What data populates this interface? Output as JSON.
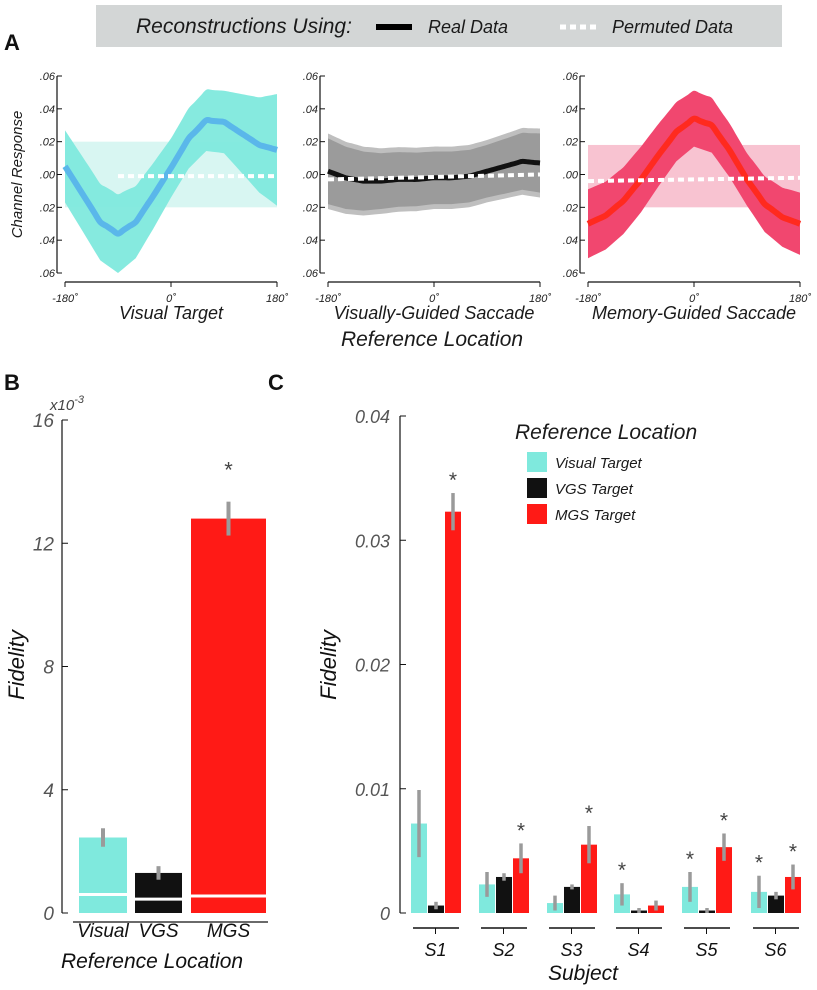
{
  "legend_banner": {
    "title": "Reconstructions Using:",
    "real_label": "Real Data",
    "permuted_label": "Permuted Data"
  },
  "panel_labels": {
    "a": "A",
    "b": "B",
    "c": "C"
  },
  "colors": {
    "visual": "#7fe9dd",
    "visual_line": "#5ab7ea",
    "visual_perm": "#d8f6f2",
    "vgs": "#9b9b9b",
    "vgs_outer": "#bfbfbf",
    "vgs_line": "#111111",
    "mgs": "#f1476f",
    "mgs_line": "#ff2a1f",
    "mgs_perm": "#f8c3d1",
    "bar_red": "#ff1a16",
    "bar_black": "#111111",
    "err": "#9a9a9a"
  },
  "chart_data": [
    {
      "id": "A1",
      "type": "line",
      "xlabel": "Visual Target",
      "ylabel": "Channel Response",
      "xlim": [
        -180,
        180
      ],
      "ylim": [
        -0.06,
        0.06
      ],
      "yticks": [
        ".06",
        ".04",
        ".02",
        ".00",
        ".02",
        ".04",
        ".06"
      ],
      "xticks": [
        "-180˚",
        "0˚",
        "180˚"
      ],
      "series": [
        {
          "name": "Real Data",
          "x": [
            -180,
            -150,
            -120,
            -90,
            -60,
            -30,
            0,
            30,
            60,
            90,
            120,
            150,
            180
          ],
          "y": [
            0.005,
            -0.012,
            -0.029,
            -0.036,
            -0.029,
            -0.013,
            0.004,
            0.022,
            0.033,
            0.032,
            0.025,
            0.018,
            0.015
          ]
        },
        {
          "name": "Permuted Data",
          "x": [
            -90,
            180
          ],
          "y": [
            -0.001,
            -0.001
          ]
        }
      ]
    },
    {
      "id": "A2",
      "type": "line",
      "xlabel": "Visually-Guided Saccade",
      "xlim": [
        -180,
        180
      ],
      "ylim": [
        -0.06,
        0.06
      ],
      "yticks": [
        ".06",
        ".04",
        ".02",
        ".00",
        ".02",
        ".04",
        ".06"
      ],
      "xticks": [
        "-180˚",
        "0˚",
        "180˚"
      ],
      "series": [
        {
          "name": "Real Data",
          "x": [
            -180,
            -150,
            -120,
            -90,
            -60,
            -30,
            0,
            30,
            60,
            90,
            120,
            150,
            180
          ],
          "y": [
            0.002,
            -0.002,
            -0.004,
            -0.004,
            -0.003,
            -0.003,
            -0.002,
            -0.002,
            -0.001,
            0.002,
            0.005,
            0.008,
            0.007
          ]
        },
        {
          "name": "Permuted Data",
          "x": [
            -180,
            180
          ],
          "y": [
            -0.003,
            0.0
          ]
        }
      ]
    },
    {
      "id": "A3",
      "type": "line",
      "xlabel": "Memory-Guided Saccade",
      "xlim": [
        -180,
        180
      ],
      "ylim": [
        -0.06,
        0.06
      ],
      "yticks": [
        ".06",
        ".04",
        ".02",
        ".00",
        ".02",
        ".04",
        ".06"
      ],
      "xticks": [
        "-180˚",
        "0˚",
        "180˚"
      ],
      "series": [
        {
          "name": "Real Data",
          "x": [
            -180,
            -150,
            -120,
            -90,
            -60,
            -30,
            0,
            30,
            60,
            90,
            120,
            150,
            180
          ],
          "y": [
            -0.03,
            -0.025,
            -0.016,
            -0.003,
            0.012,
            0.026,
            0.034,
            0.03,
            0.015,
            -0.003,
            -0.018,
            -0.026,
            -0.03
          ]
        },
        {
          "name": "Permuted Data",
          "x": [
            -180,
            180
          ],
          "y": [
            -0.004,
            -0.002
          ]
        }
      ]
    },
    {
      "id": "B",
      "type": "bar",
      "title": "",
      "ylabel": "Fidelity",
      "xlabel": "Reference Location",
      "scale_label": "x10",
      "scale_exponent": "-3",
      "ylim": [
        0,
        16
      ],
      "yticks": [
        "16",
        "12",
        "8",
        "4",
        "0"
      ],
      "categories": [
        "Visual",
        "VGS",
        "MGS"
      ],
      "values": [
        2.45,
        1.3,
        12.8
      ],
      "errors": [
        0.3,
        0.22,
        0.55
      ],
      "null_values": [
        0.6,
        0.45,
        0.55
      ],
      "annotations": [
        "",
        "",
        "*"
      ]
    },
    {
      "id": "C",
      "type": "bar",
      "ylabel": "Fidelity",
      "xlabel": "Subject",
      "legend_title": "Reference Location",
      "ylim": [
        0,
        0.04
      ],
      "yticks": [
        "0.04",
        "0.03",
        "0.02",
        "0.01",
        "0"
      ],
      "categories": [
        "S1",
        "S2",
        "S3",
        "S4",
        "S5",
        "S6"
      ],
      "series": [
        {
          "name": "Visual Target",
          "values": [
            0.0072,
            0.0023,
            0.0008,
            0.0015,
            0.0021,
            0.0017
          ],
          "errors": [
            0.0027,
            0.001,
            0.0006,
            0.0009,
            0.0012,
            0.0013
          ],
          "stars": [
            "",
            "",
            "",
            "*",
            "*",
            "*"
          ]
        },
        {
          "name": "VGS Target",
          "values": [
            0.0006,
            0.0029,
            0.0021,
            0.0002,
            0.0002,
            0.0014
          ],
          "errors": [
            0.0003,
            0.0003,
            0.0002,
            0.0002,
            0.0002,
            0.0003
          ],
          "stars": [
            "",
            "",
            "",
            "",
            "",
            ""
          ]
        },
        {
          "name": "MGS Target",
          "values": [
            0.0323,
            0.0044,
            0.0055,
            0.0006,
            0.0053,
            0.0029
          ],
          "errors": [
            0.0015,
            0.0012,
            0.0015,
            0.0004,
            0.0011,
            0.001
          ],
          "stars": [
            "*",
            "*",
            "*",
            "",
            "*",
            "*"
          ]
        }
      ]
    }
  ],
  "shared_xlabel": "Reference Location"
}
